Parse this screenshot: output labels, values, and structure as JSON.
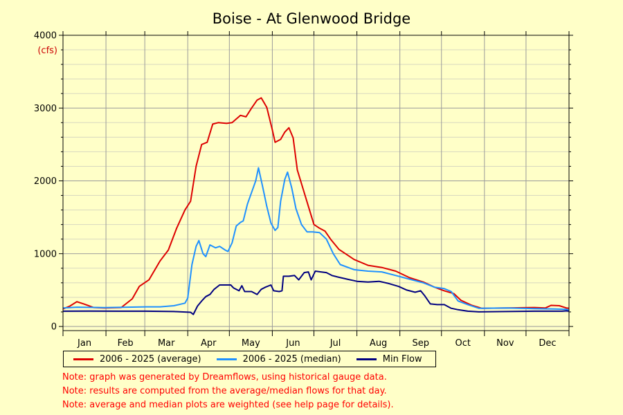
{
  "chart_data": {
    "type": "line",
    "title": "Boise - At Glenwood Bridge",
    "ylabel": "(cfs)",
    "xlabel": "",
    "ylim": [
      0,
      4000
    ],
    "yticks": [
      0,
      1000,
      2000,
      3000,
      4000
    ],
    "xlim": [
      0,
      365
    ],
    "x_unit": "day of year",
    "month_labels": [
      "Jan",
      "Feb",
      "Mar",
      "Apr",
      "May",
      "Jun",
      "Jul",
      "Aug",
      "Sep",
      "Oct",
      "Nov",
      "Dec"
    ],
    "grid": true,
    "legend_placement": "bottom",
    "series": [
      {
        "name": "2006 - 2025 (average)",
        "color": "#dd0000",
        "points": [
          [
            0,
            240
          ],
          [
            5,
            280
          ],
          [
            10,
            340
          ],
          [
            15,
            310
          ],
          [
            22,
            260
          ],
          [
            30,
            255
          ],
          [
            42,
            260
          ],
          [
            50,
            380
          ],
          [
            55,
            550
          ],
          [
            62,
            640
          ],
          [
            70,
            900
          ],
          [
            76,
            1050
          ],
          [
            82,
            1350
          ],
          [
            88,
            1600
          ],
          [
            92,
            1720
          ],
          [
            96,
            2200
          ],
          [
            100,
            2500
          ],
          [
            104,
            2530
          ],
          [
            108,
            2780
          ],
          [
            112,
            2800
          ],
          [
            118,
            2790
          ],
          [
            122,
            2800
          ],
          [
            128,
            2900
          ],
          [
            132,
            2880
          ],
          [
            136,
            3000
          ],
          [
            140,
            3110
          ],
          [
            143,
            3140
          ],
          [
            147,
            3010
          ],
          [
            151,
            2700
          ],
          [
            153,
            2530
          ],
          [
            157,
            2570
          ],
          [
            160,
            2670
          ],
          [
            163,
            2730
          ],
          [
            166,
            2590
          ],
          [
            169,
            2150
          ],
          [
            173,
            1900
          ],
          [
            177,
            1650
          ],
          [
            181,
            1400
          ],
          [
            185,
            1350
          ],
          [
            189,
            1310
          ],
          [
            193,
            1200
          ],
          [
            199,
            1060
          ],
          [
            210,
            920
          ],
          [
            220,
            840
          ],
          [
            230,
            810
          ],
          [
            240,
            760
          ],
          [
            250,
            670
          ],
          [
            260,
            610
          ],
          [
            268,
            540
          ],
          [
            275,
            490
          ],
          [
            282,
            450
          ],
          [
            287,
            360
          ],
          [
            295,
            290
          ],
          [
            302,
            250
          ],
          [
            320,
            255
          ],
          [
            340,
            260
          ],
          [
            348,
            255
          ],
          [
            352,
            290
          ],
          [
            358,
            285
          ],
          [
            363,
            255
          ],
          [
            365,
            250
          ]
        ]
      },
      {
        "name": "2006 - 2025 (median)",
        "color": "#1e90ff",
        "points": [
          [
            0,
            255
          ],
          [
            10,
            265
          ],
          [
            20,
            262
          ],
          [
            30,
            258
          ],
          [
            40,
            262
          ],
          [
            60,
            270
          ],
          [
            70,
            270
          ],
          [
            80,
            285
          ],
          [
            88,
            320
          ],
          [
            90,
            390
          ],
          [
            93,
            850
          ],
          [
            96,
            1100
          ],
          [
            98,
            1180
          ],
          [
            101,
            1000
          ],
          [
            103,
            960
          ],
          [
            106,
            1120
          ],
          [
            110,
            1080
          ],
          [
            113,
            1100
          ],
          [
            117,
            1050
          ],
          [
            119,
            1030
          ],
          [
            122,
            1150
          ],
          [
            125,
            1380
          ],
          [
            128,
            1430
          ],
          [
            130,
            1450
          ],
          [
            133,
            1680
          ],
          [
            136,
            1840
          ],
          [
            139,
            2000
          ],
          [
            141,
            2180
          ],
          [
            144,
            1920
          ],
          [
            147,
            1650
          ],
          [
            150,
            1420
          ],
          [
            153,
            1320
          ],
          [
            155,
            1360
          ],
          [
            157,
            1720
          ],
          [
            160,
            2020
          ],
          [
            162,
            2120
          ],
          [
            165,
            1900
          ],
          [
            168,
            1620
          ],
          [
            172,
            1400
          ],
          [
            176,
            1300
          ],
          [
            180,
            1300
          ],
          [
            185,
            1290
          ],
          [
            190,
            1200
          ],
          [
            195,
            1000
          ],
          [
            200,
            850
          ],
          [
            210,
            780
          ],
          [
            220,
            760
          ],
          [
            230,
            750
          ],
          [
            240,
            700
          ],
          [
            250,
            650
          ],
          [
            260,
            600
          ],
          [
            268,
            540
          ],
          [
            275,
            520
          ],
          [
            280,
            480
          ],
          [
            285,
            350
          ],
          [
            292,
            300
          ],
          [
            300,
            250
          ],
          [
            320,
            255
          ],
          [
            340,
            245
          ],
          [
            355,
            240
          ],
          [
            363,
            235
          ],
          [
            365,
            225
          ]
        ]
      },
      {
        "name": "Min Flow",
        "color": "#000080",
        "points": [
          [
            0,
            210
          ],
          [
            20,
            212
          ],
          [
            40,
            210
          ],
          [
            60,
            210
          ],
          [
            80,
            205
          ],
          [
            92,
            195
          ],
          [
            94,
            165
          ],
          [
            97,
            280
          ],
          [
            100,
            350
          ],
          [
            103,
            410
          ],
          [
            106,
            440
          ],
          [
            109,
            510
          ],
          [
            113,
            570
          ],
          [
            117,
            570
          ],
          [
            121,
            570
          ],
          [
            123,
            530
          ],
          [
            127,
            490
          ],
          [
            129,
            560
          ],
          [
            131,
            480
          ],
          [
            136,
            480
          ],
          [
            140,
            440
          ],
          [
            143,
            510
          ],
          [
            146,
            540
          ],
          [
            150,
            570
          ],
          [
            152,
            490
          ],
          [
            156,
            480
          ],
          [
            158,
            490
          ],
          [
            159,
            690
          ],
          [
            163,
            690
          ],
          [
            167,
            700
          ],
          [
            170,
            640
          ],
          [
            174,
            740
          ],
          [
            177,
            750
          ],
          [
            179,
            640
          ],
          [
            182,
            760
          ],
          [
            186,
            750
          ],
          [
            190,
            740
          ],
          [
            194,
            700
          ],
          [
            198,
            680
          ],
          [
            205,
            650
          ],
          [
            212,
            620
          ],
          [
            220,
            610
          ],
          [
            228,
            620
          ],
          [
            235,
            590
          ],
          [
            242,
            550
          ],
          [
            248,
            500
          ],
          [
            254,
            470
          ],
          [
            258,
            490
          ],
          [
            261,
            420
          ],
          [
            265,
            310
          ],
          [
            270,
            300
          ],
          [
            275,
            300
          ],
          [
            280,
            250
          ],
          [
            285,
            230
          ],
          [
            292,
            210
          ],
          [
            300,
            200
          ],
          [
            320,
            205
          ],
          [
            340,
            210
          ],
          [
            355,
            210
          ],
          [
            360,
            210
          ],
          [
            363,
            215
          ],
          [
            365,
            210
          ]
        ]
      }
    ]
  },
  "notes": [
    "Note: graph was generated by Dreamflows, using historical gauge data.",
    "Note: results are computed from the average/median flows for that day.",
    "Note: average and median plots are weighted (see help page for details)."
  ]
}
